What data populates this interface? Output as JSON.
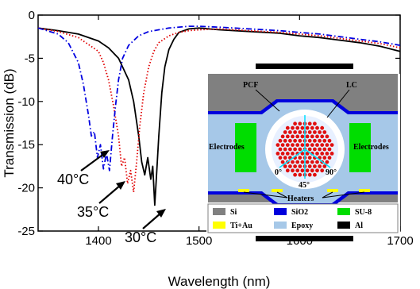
{
  "chart_data": {
    "type": "line",
    "xlabel": "Wavelength (nm)",
    "ylabel": "Transmission (dB)",
    "xlim": [
      1340,
      1700
    ],
    "ylim": [
      -25,
      0
    ],
    "xticks": [
      1400,
      1500,
      1600,
      1700
    ],
    "yticks": [
      0,
      -5,
      -10,
      -15,
      -20,
      -25
    ],
    "grid": false,
    "series": [
      {
        "name": "30°C",
        "style": "solid",
        "color": "#000000",
        "x": [
          1340,
          1360,
          1380,
          1400,
          1410,
          1420,
          1430,
          1435,
          1440,
          1443,
          1446,
          1449,
          1452,
          1454,
          1456,
          1458,
          1460,
          1463,
          1466,
          1470,
          1475,
          1480,
          1490,
          1500,
          1520,
          1550,
          1580,
          1600,
          1620,
          1640,
          1660,
          1680,
          1700
        ],
        "y": [
          -1.5,
          -1.8,
          -2.2,
          -3.0,
          -3.8,
          -5.0,
          -7.5,
          -10.0,
          -14.0,
          -17.0,
          -18.5,
          -16.5,
          -19.0,
          -17.5,
          -22.0,
          -18.0,
          -14.0,
          -9.0,
          -6.0,
          -4.0,
          -2.8,
          -2.0,
          -1.6,
          -1.5,
          -1.7,
          -1.9,
          -2.1,
          -2.4,
          -2.6,
          -2.9,
          -3.2,
          -3.6,
          -4.2
        ]
      },
      {
        "name": "35°C",
        "style": "dotted",
        "color": "#e00000",
        "x": [
          1340,
          1360,
          1380,
          1400,
          1405,
          1410,
          1415,
          1420,
          1423,
          1426,
          1429,
          1432,
          1435,
          1438,
          1441,
          1445,
          1450,
          1455,
          1460,
          1470,
          1480,
          1490,
          1500,
          1520,
          1550,
          1580,
          1600,
          1620,
          1640,
          1660,
          1680,
          1700
        ],
        "y": [
          -1.5,
          -1.9,
          -2.6,
          -4.2,
          -5.5,
          -7.5,
          -10.5,
          -14.0,
          -17.5,
          -16.5,
          -19.5,
          -18.0,
          -20.5,
          -17.0,
          -13.0,
          -9.0,
          -6.0,
          -4.2,
          -3.2,
          -2.4,
          -2.0,
          -1.8,
          -1.7,
          -1.6,
          -1.8,
          -2.0,
          -2.2,
          -2.4,
          -2.7,
          -3.0,
          -3.3,
          -3.8
        ]
      },
      {
        "name": "40°C",
        "style": "dashdot",
        "color": "#0000e0",
        "x": [
          1340,
          1360,
          1370,
          1380,
          1385,
          1390,
          1393,
          1396,
          1399,
          1402,
          1405,
          1408,
          1411,
          1414,
          1417,
          1420,
          1424,
          1430,
          1440,
          1450,
          1470,
          1490,
          1500,
          1520,
          1550,
          1580,
          1600,
          1620,
          1640,
          1660,
          1680,
          1700
        ],
        "y": [
          -1.5,
          -2.2,
          -3.2,
          -5.5,
          -8.0,
          -11.5,
          -14.0,
          -13.5,
          -16.5,
          -15.0,
          -17.8,
          -16.0,
          -18.0,
          -14.0,
          -10.5,
          -7.5,
          -5.0,
          -3.5,
          -2.4,
          -1.9,
          -1.5,
          -1.3,
          -1.3,
          -1.4,
          -1.6,
          -1.8,
          -2.0,
          -2.2,
          -2.5,
          -2.8,
          -3.1,
          -3.5
        ]
      }
    ],
    "annotations": [
      "40°C",
      "35°C",
      "30°C"
    ]
  },
  "inset": {
    "labels": {
      "pcf": "PCF",
      "lc": "LC",
      "electrodes_left": "Electrodes",
      "electrodes_right": "Electrodes",
      "angle0": "0°",
      "angle90": "90°",
      "angle45": "45°",
      "heaters": "Heaters"
    },
    "legend": [
      {
        "label": "Si",
        "color": "#808080"
      },
      {
        "label": "SiO2",
        "color": "#0000dd"
      },
      {
        "label": "SU-8",
        "color": "#00dd00"
      },
      {
        "label": "Ti+Au",
        "color": "#ffff00"
      },
      {
        "label": "Epoxy",
        "color": "#a6c8e8"
      },
      {
        "label": "Al",
        "color": "#000000"
      }
    ]
  }
}
